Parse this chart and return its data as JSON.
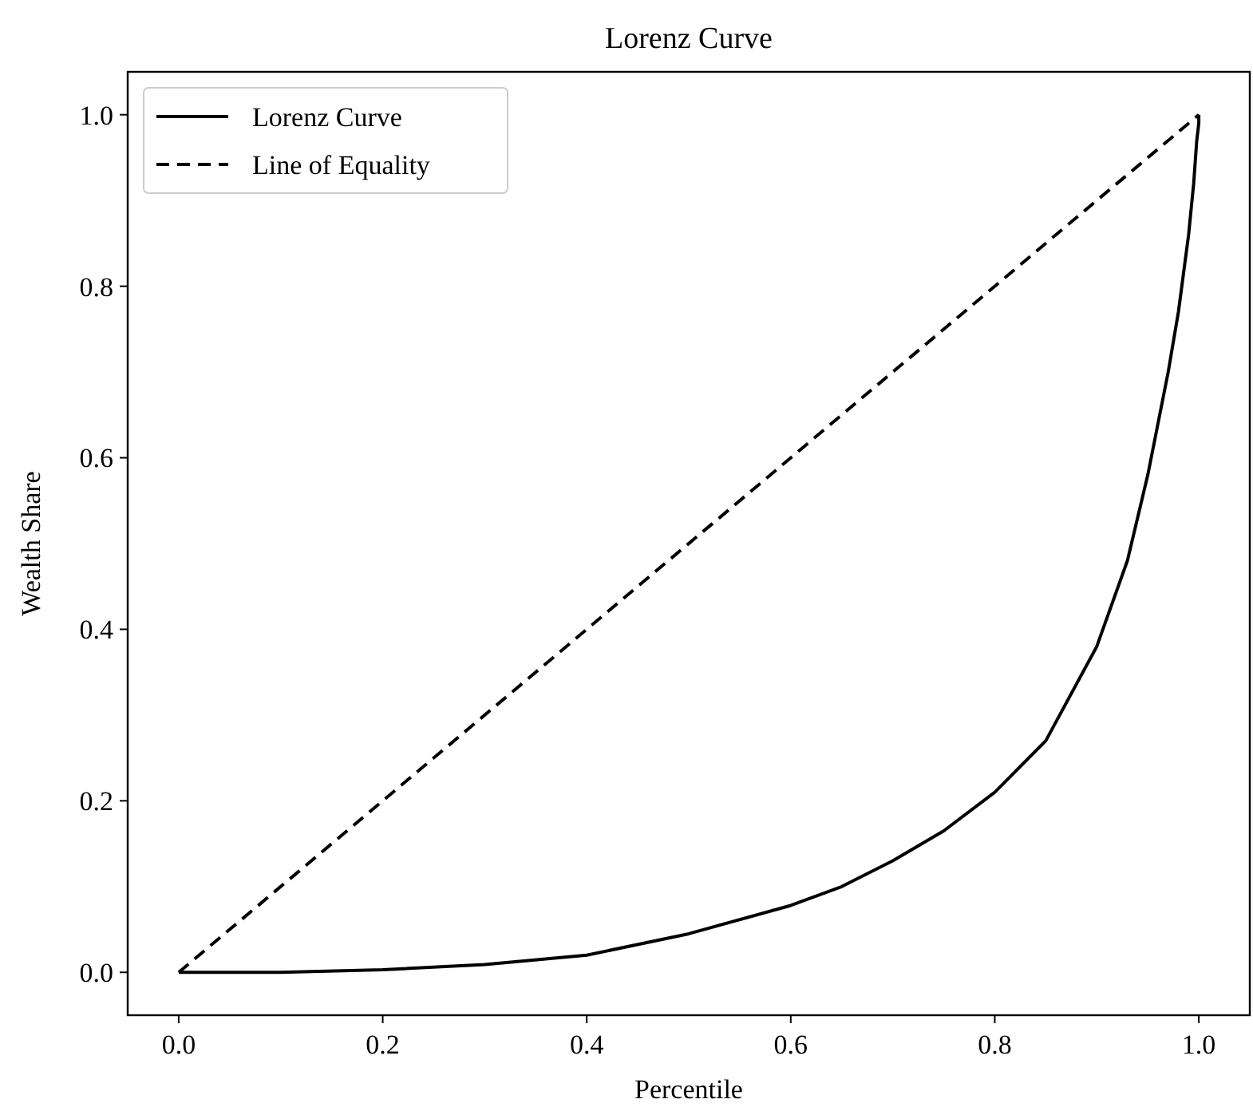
{
  "chart_data": {
    "type": "line",
    "title": "Lorenz Curve",
    "xlabel": "Percentile",
    "ylabel": "Wealth Share",
    "xlim": [
      -0.05,
      1.05
    ],
    "ylim": [
      -0.05,
      1.05
    ],
    "xticks": [
      {
        "value": 0,
        "label": "0.0"
      },
      {
        "value": 0.2,
        "label": "0.2"
      },
      {
        "value": 0.4,
        "label": "0.4"
      },
      {
        "value": 0.6,
        "label": "0.6"
      },
      {
        "value": 0.8,
        "label": "0.8"
      },
      {
        "value": 1,
        "label": "1.0"
      }
    ],
    "yticks": [
      {
        "value": 0,
        "label": "0.0"
      },
      {
        "value": 0.2,
        "label": "0.2"
      },
      {
        "value": 0.4,
        "label": "0.4"
      },
      {
        "value": 0.6,
        "label": "0.6"
      },
      {
        "value": 0.8,
        "label": "0.8"
      },
      {
        "value": 1,
        "label": "1.0"
      }
    ],
    "legend": "top left",
    "grid": false,
    "series": [
      {
        "name": "Lorenz Curve",
        "color": "#000000",
        "line_style": "solid",
        "x": [
          0,
          0.1,
          0.2,
          0.3,
          0.4,
          0.5,
          0.6,
          0.65,
          0.7,
          0.75,
          0.8,
          0.85,
          0.9,
          0.93,
          0.95,
          0.97,
          0.98,
          0.99,
          0.995,
          0.998,
          1,
          1
        ],
        "values": [
          0,
          0,
          0.003,
          0.009,
          0.02,
          0.045,
          0.078,
          0.1,
          0.13,
          0.165,
          0.21,
          0.27,
          0.38,
          0.48,
          0.58,
          0.7,
          0.77,
          0.86,
          0.92,
          0.97,
          0.99,
          1
        ]
      },
      {
        "name": "Line of Equality",
        "color": "#000000",
        "line_style": "dashed",
        "x": [
          0,
          1
        ],
        "values": [
          0,
          1
        ]
      }
    ]
  }
}
